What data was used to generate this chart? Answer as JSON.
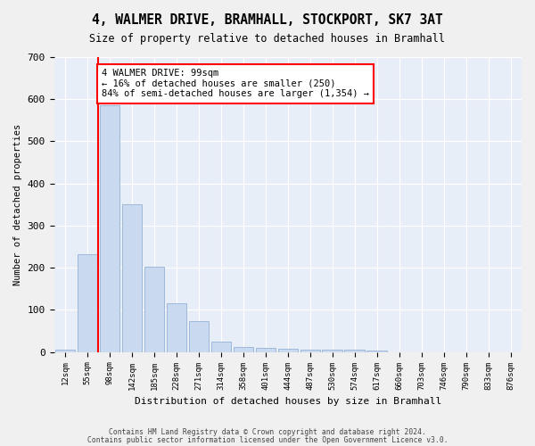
{
  "title": "4, WALMER DRIVE, BRAMHALL, STOCKPORT, SK7 3AT",
  "subtitle": "Size of property relative to detached houses in Bramhall",
  "xlabel": "Distribution of detached houses by size in Bramhall",
  "ylabel": "Number of detached properties",
  "bar_values": [
    5,
    232,
    585,
    350,
    203,
    115,
    73,
    25,
    13,
    10,
    8,
    5,
    5,
    5,
    3,
    0,
    0,
    0,
    0,
    0,
    0
  ],
  "bar_labels": [
    "12sqm",
    "55sqm",
    "98sqm",
    "142sqm",
    "185sqm",
    "228sqm",
    "271sqm",
    "314sqm",
    "358sqm",
    "401sqm",
    "444sqm",
    "487sqm",
    "530sqm",
    "574sqm",
    "617sqm",
    "660sqm",
    "703sqm",
    "746sqm",
    "790sqm",
    "833sqm",
    "876sqm"
  ],
  "bar_color": "#c9d9f0",
  "bar_edgecolor": "#a0b8d8",
  "red_line_index": 2,
  "annotation_text": "4 WALMER DRIVE: 99sqm\n← 16% of detached houses are smaller (250)\n84% of semi-detached houses are larger (1,354) →",
  "ylim": [
    0,
    700
  ],
  "yticks": [
    0,
    100,
    200,
    300,
    400,
    500,
    600,
    700
  ],
  "footer_line1": "Contains HM Land Registry data © Crown copyright and database right 2024.",
  "footer_line2": "Contains public sector information licensed under the Open Government Licence v3.0.",
  "bg_color": "#f0f0f0",
  "plot_bg_color": "#e8eef8"
}
